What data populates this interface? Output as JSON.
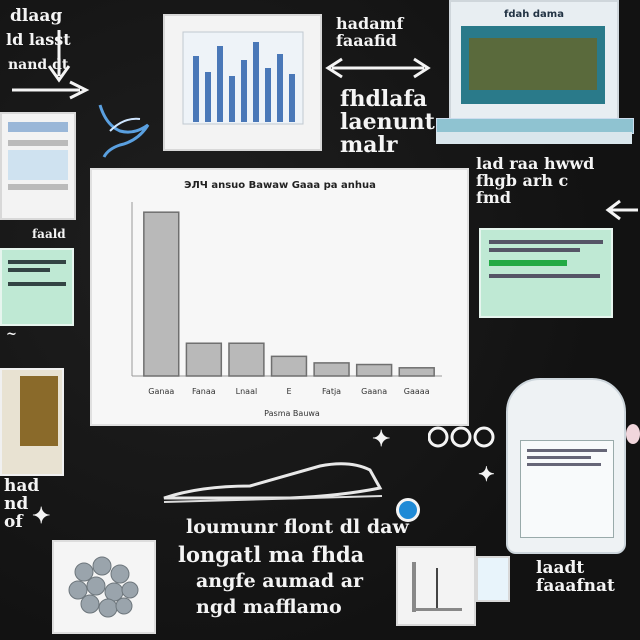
{
  "chalk_text": {
    "top_left_a": "dlaag",
    "top_left_b": "ld  lasst",
    "top_left_c": "nand  dt",
    "top_mid": "hadamf\nfaaafid",
    "mid_right_a": "fhdlafa\nlaenunt\nmalr",
    "right_a": "lad raa  hwwd\nfhgb arh  c\nfmd",
    "left_mid": "faald",
    "bottom_a": "loumunr  flont  dl  daw",
    "bottom_b": "longatl    ma  fhda",
    "bottom_c": "angfe    aumad  ar",
    "bottom_d": "ngd  mafflamo",
    "bottom_left_a": "had\nnd\nof",
    "bottom_right_a": "laadt\nfaaafnat"
  },
  "laptop": {
    "title": "fdah dama"
  },
  "chart_data": {
    "type": "bar",
    "title": "ЭЛЧ ansuo Bawaw Gaaa pa anhua",
    "xlabel": "Pasma Bauwa",
    "ylabel": "",
    "categories": [
      "Ganaa",
      "Fanaa",
      "Lnaal",
      "E",
      "Fatja",
      "Gaana",
      "Gaaaa"
    ],
    "values": [
      100,
      20,
      20,
      12,
      8,
      7,
      5
    ],
    "ylim": [
      0,
      105
    ],
    "colors": {
      "bar_fill": "#b9b9b9",
      "bar_stroke": "#6f6f6f"
    }
  },
  "colors": {
    "board": "#141414",
    "chalk": "#f4f4f4",
    "mint": "#bfe9d4",
    "card": "#f3f3f3",
    "accent_blue": "#4a78b8"
  }
}
